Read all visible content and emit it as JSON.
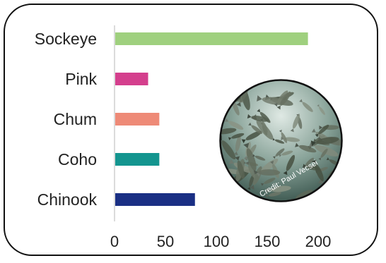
{
  "chart_data": {
    "type": "bar",
    "orientation": "horizontal",
    "categories": [
      "Sockeye",
      "Pink",
      "Chum",
      "Coho",
      "Chinook"
    ],
    "values": [
      190,
      33,
      44,
      44,
      79
    ],
    "colors": [
      "#9fd07e",
      "#d43f8d",
      "#ee8a77",
      "#14958f",
      "#1a2f84"
    ],
    "xlim": [
      0,
      200
    ],
    "xticks": [
      0,
      50,
      100,
      150,
      200
    ],
    "xlabel": "",
    "ylabel": "",
    "title": "",
    "grid": false
  },
  "photo": {
    "credit": "Credit: Paul Vecsei",
    "icon": "salmon-school-photo"
  }
}
